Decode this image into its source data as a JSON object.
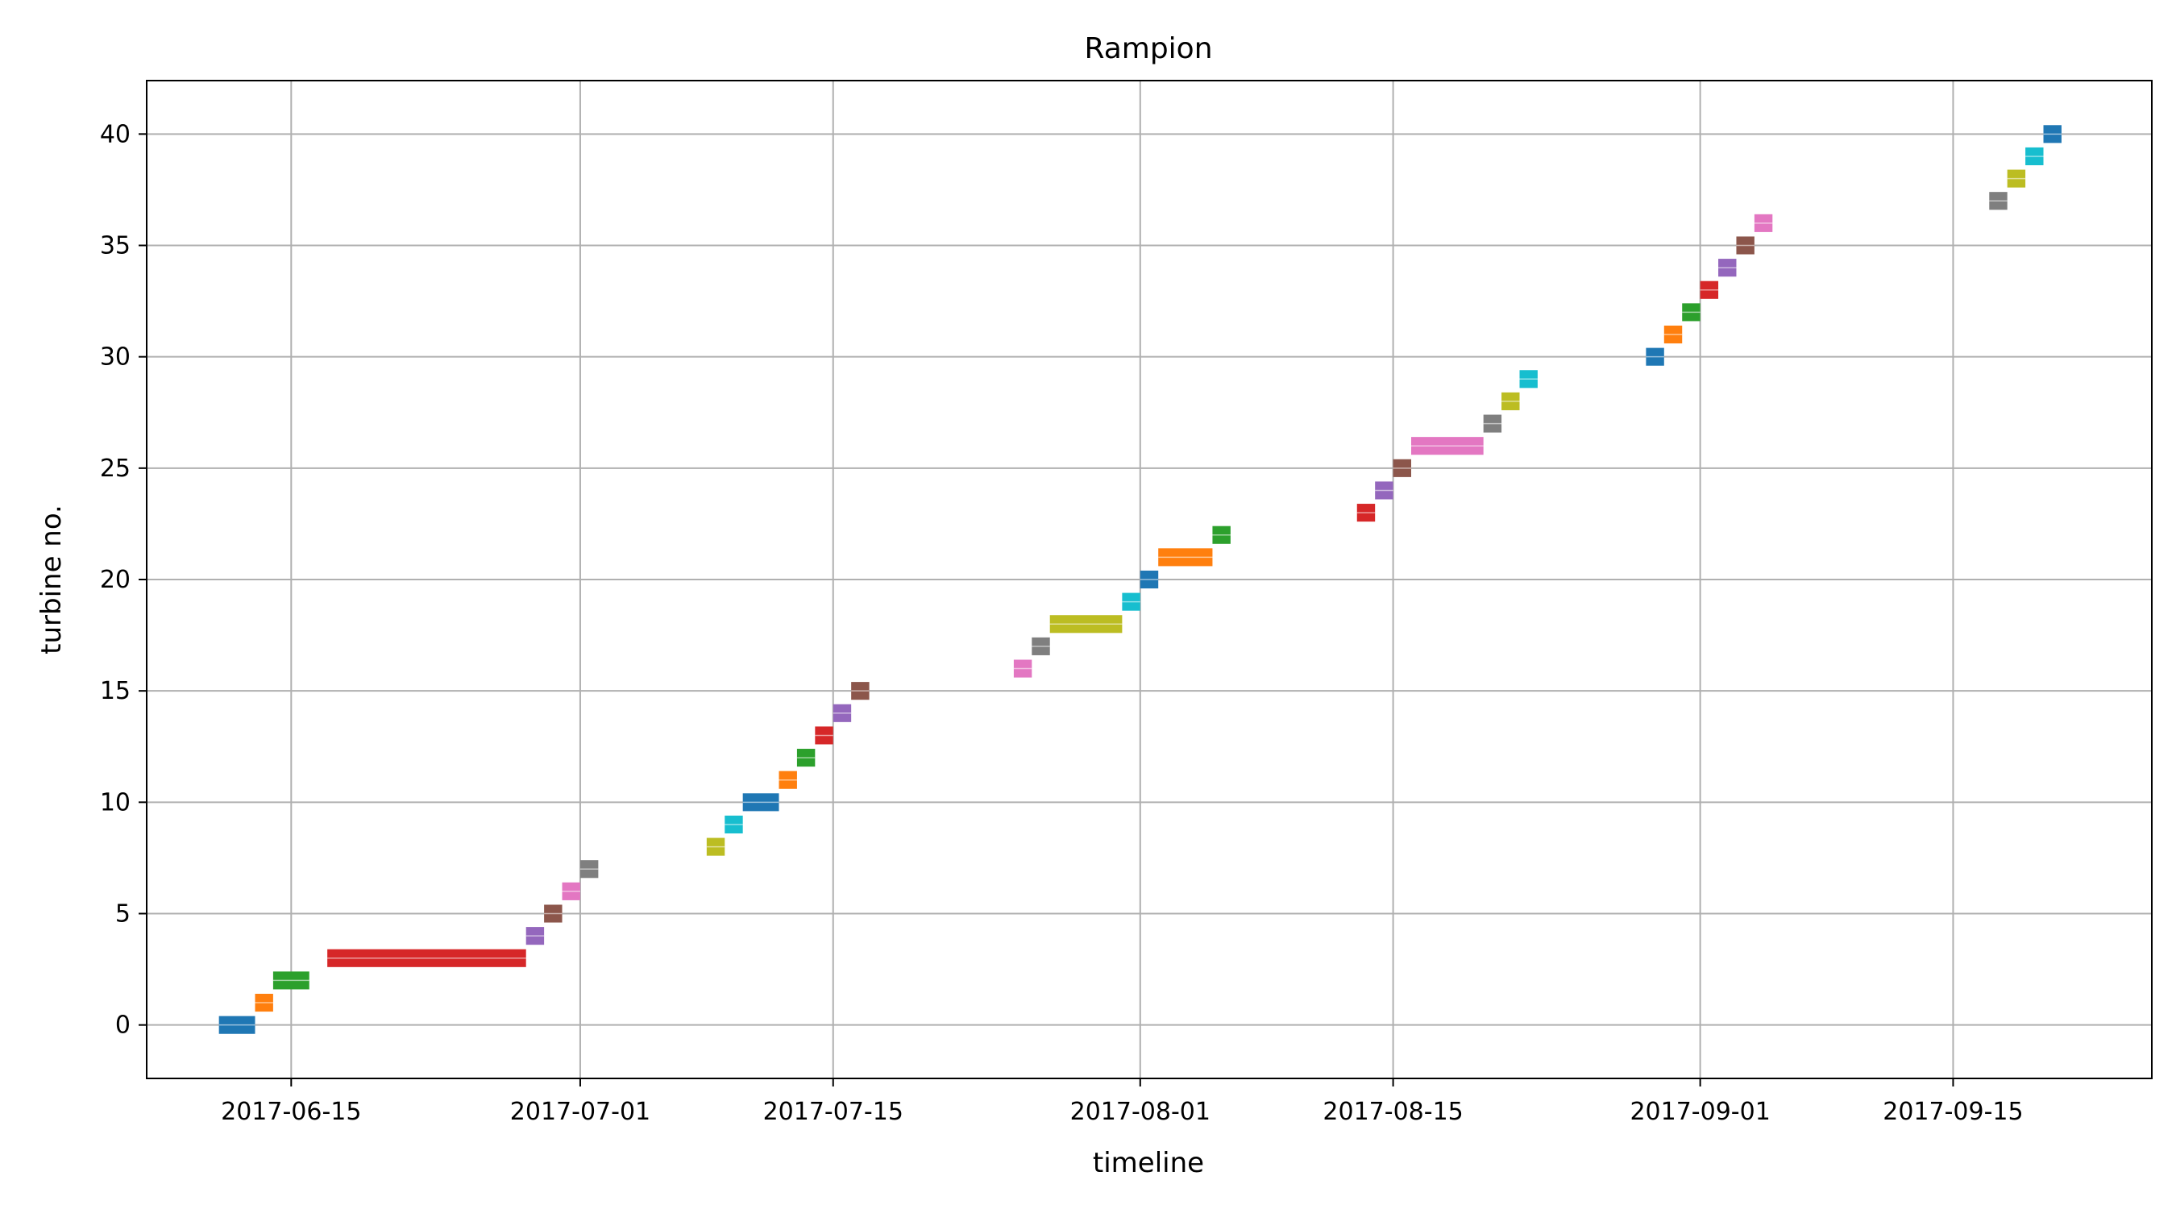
{
  "chart_data": {
    "type": "bar",
    "orientation": "horizontal-timeline",
    "title": "Rampion",
    "xlabel": "timeline",
    "ylabel": "turbine no.",
    "x_range": [
      "2017-06-07",
      "2017-09-26"
    ],
    "y_range": [
      -2.4,
      42.4
    ],
    "x_ticks": [
      "2017-06-15",
      "2017-07-01",
      "2017-07-15",
      "2017-08-01",
      "2017-08-15",
      "2017-09-01",
      "2017-09-15"
    ],
    "y_ticks": [
      0,
      5,
      10,
      15,
      20,
      25,
      30,
      35,
      40
    ],
    "grid": true,
    "legend": "none",
    "bars": [
      {
        "turbine": 0,
        "start": "2017-06-11",
        "end": "2017-06-13",
        "color": "#1f77b4"
      },
      {
        "turbine": 1,
        "start": "2017-06-13",
        "end": "2017-06-14",
        "color": "#ff7f0e"
      },
      {
        "turbine": 2,
        "start": "2017-06-14",
        "end": "2017-06-16",
        "color": "#2ca02c"
      },
      {
        "turbine": 3,
        "start": "2017-06-17",
        "end": "2017-06-28",
        "color": "#d62728"
      },
      {
        "turbine": 4,
        "start": "2017-06-28",
        "end": "2017-06-29",
        "color": "#9467bd"
      },
      {
        "turbine": 5,
        "start": "2017-06-29",
        "end": "2017-06-30",
        "color": "#8c564b"
      },
      {
        "turbine": 6,
        "start": "2017-06-30",
        "end": "2017-07-01",
        "color": "#e377c2"
      },
      {
        "turbine": 7,
        "start": "2017-07-01",
        "end": "2017-07-02",
        "color": "#7f7f7f"
      },
      {
        "turbine": 8,
        "start": "2017-07-08",
        "end": "2017-07-09",
        "color": "#bcbd22"
      },
      {
        "turbine": 9,
        "start": "2017-07-09",
        "end": "2017-07-10",
        "color": "#17becf"
      },
      {
        "turbine": 10,
        "start": "2017-07-10",
        "end": "2017-07-12",
        "color": "#1f77b4"
      },
      {
        "turbine": 11,
        "start": "2017-07-12",
        "end": "2017-07-13",
        "color": "#ff7f0e"
      },
      {
        "turbine": 12,
        "start": "2017-07-13",
        "end": "2017-07-14",
        "color": "#2ca02c"
      },
      {
        "turbine": 13,
        "start": "2017-07-14",
        "end": "2017-07-15",
        "color": "#d62728"
      },
      {
        "turbine": 14,
        "start": "2017-07-15",
        "end": "2017-07-16",
        "color": "#9467bd"
      },
      {
        "turbine": 15,
        "start": "2017-07-16",
        "end": "2017-07-17",
        "color": "#8c564b"
      },
      {
        "turbine": 16,
        "start": "2017-07-25",
        "end": "2017-07-26",
        "color": "#e377c2"
      },
      {
        "turbine": 17,
        "start": "2017-07-26",
        "end": "2017-07-27",
        "color": "#7f7f7f"
      },
      {
        "turbine": 18,
        "start": "2017-07-27",
        "end": "2017-07-31",
        "color": "#bcbd22"
      },
      {
        "turbine": 19,
        "start": "2017-07-31",
        "end": "2017-08-01",
        "color": "#17becf"
      },
      {
        "turbine": 20,
        "start": "2017-08-01",
        "end": "2017-08-02",
        "color": "#1f77b4"
      },
      {
        "turbine": 21,
        "start": "2017-08-02",
        "end": "2017-08-05",
        "color": "#ff7f0e"
      },
      {
        "turbine": 22,
        "start": "2017-08-05",
        "end": "2017-08-06",
        "color": "#2ca02c"
      },
      {
        "turbine": 23,
        "start": "2017-08-13",
        "end": "2017-08-14",
        "color": "#d62728"
      },
      {
        "turbine": 24,
        "start": "2017-08-14",
        "end": "2017-08-15",
        "color": "#9467bd"
      },
      {
        "turbine": 25,
        "start": "2017-08-15",
        "end": "2017-08-16",
        "color": "#8c564b"
      },
      {
        "turbine": 26,
        "start": "2017-08-16",
        "end": "2017-08-20",
        "color": "#e377c2"
      },
      {
        "turbine": 27,
        "start": "2017-08-20",
        "end": "2017-08-21",
        "color": "#7f7f7f"
      },
      {
        "turbine": 28,
        "start": "2017-08-21",
        "end": "2017-08-22",
        "color": "#bcbd22"
      },
      {
        "turbine": 29,
        "start": "2017-08-22",
        "end": "2017-08-23",
        "color": "#17becf"
      },
      {
        "turbine": 30,
        "start": "2017-08-29",
        "end": "2017-08-30",
        "color": "#1f77b4"
      },
      {
        "turbine": 31,
        "start": "2017-08-30",
        "end": "2017-08-31",
        "color": "#ff7f0e"
      },
      {
        "turbine": 32,
        "start": "2017-08-31",
        "end": "2017-09-01",
        "color": "#2ca02c"
      },
      {
        "turbine": 33,
        "start": "2017-09-01",
        "end": "2017-09-02",
        "color": "#d62728"
      },
      {
        "turbine": 34,
        "start": "2017-09-02",
        "end": "2017-09-03",
        "color": "#9467bd"
      },
      {
        "turbine": 35,
        "start": "2017-09-03",
        "end": "2017-09-04",
        "color": "#8c564b"
      },
      {
        "turbine": 36,
        "start": "2017-09-04",
        "end": "2017-09-05",
        "color": "#e377c2"
      },
      {
        "turbine": 37,
        "start": "2017-09-17",
        "end": "2017-09-18",
        "color": "#7f7f7f"
      },
      {
        "turbine": 38,
        "start": "2017-09-18",
        "end": "2017-09-19",
        "color": "#bcbd22"
      },
      {
        "turbine": 39,
        "start": "2017-09-19",
        "end": "2017-09-20",
        "color": "#17becf"
      },
      {
        "turbine": 40,
        "start": "2017-09-20",
        "end": "2017-09-21",
        "color": "#1f77b4"
      }
    ]
  }
}
